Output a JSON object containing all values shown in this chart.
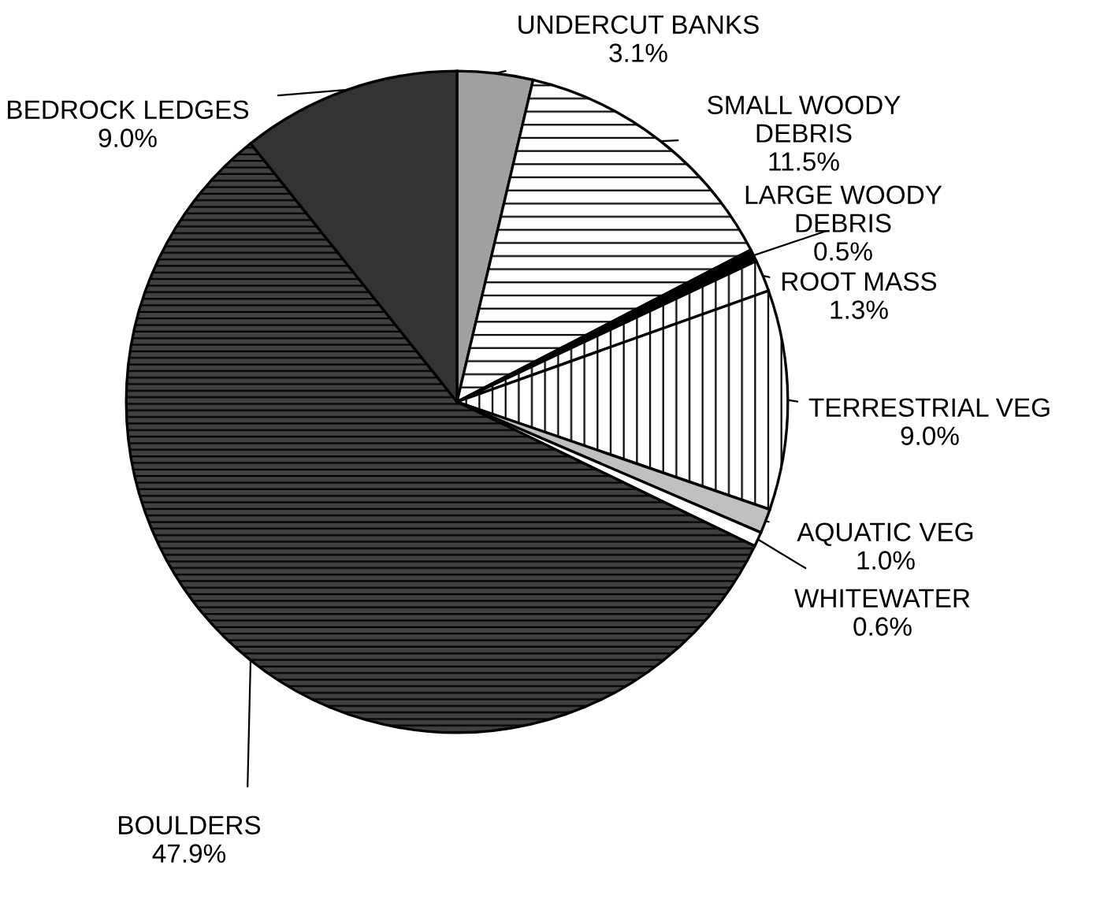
{
  "chart_data": {
    "type": "pie",
    "categories": [
      "UNDERCUT BANKS",
      "SMALL WOODY\nDEBRIS",
      "LARGE WOODY\nDEBRIS",
      "ROOT MASS",
      "TERRESTRIAL VEG",
      "AQUATIC VEG",
      "WHITEWATER",
      "BOULDERS",
      "BEDROCK LEDGES"
    ],
    "values": [
      3.1,
      11.5,
      0.5,
      1.3,
      9.0,
      1.0,
      0.6,
      47.9,
      9.0
    ],
    "colors": [
      "#a0a0a0",
      "#ffffff",
      "#000000",
      "#ffffff",
      "#ffffff",
      "#c0c0c0",
      "#ffffff",
      "#404040",
      "#333333"
    ],
    "value_labels": [
      "3.1%",
      "11.5%",
      "0.5%",
      "1.3%",
      "9.0%",
      "1.0%",
      "0.6%",
      "47.9%",
      "9.0%"
    ]
  }
}
